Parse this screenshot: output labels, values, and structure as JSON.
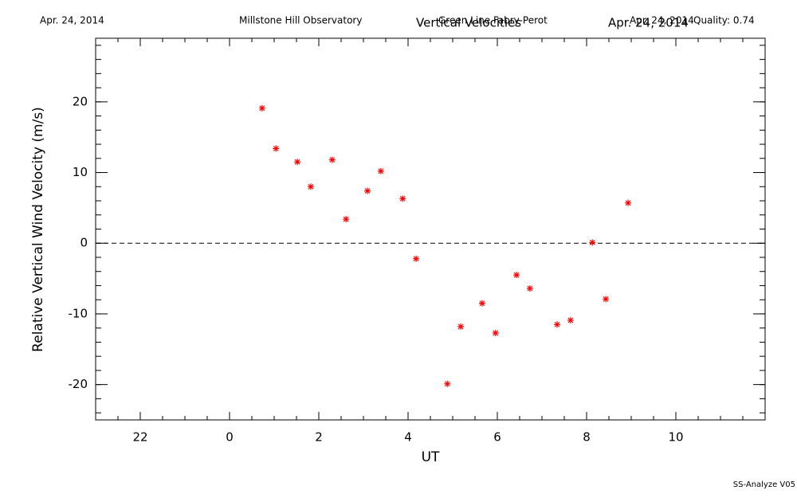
{
  "chart_data": {
    "type": "scatter",
    "header_left": "Apr. 24, 2014",
    "header_center": "Millstone Hill Observatory",
    "subtitle": "Green Line Fabry-Perot",
    "title": "Vertical Velocities",
    "title_date": "Apr. 24, 2014",
    "header_right_date": "Apr. 24, 2014",
    "quality": "Quality: 0.74",
    "footer": "SS-Analyze V05",
    "xlabel": "UT",
    "ylabel": "Relative Vertical Wind Velocity (m/s)",
    "x": [
      0.73,
      1.04,
      1.52,
      1.82,
      2.3,
      2.61,
      3.09,
      3.39,
      3.88,
      4.18,
      4.88,
      5.18,
      5.66,
      5.96,
      6.43,
      6.73,
      7.34,
      7.64,
      8.13,
      8.43,
      8.93
    ],
    "values": [
      19.1,
      13.4,
      11.5,
      8.0,
      11.8,
      3.4,
      7.4,
      10.2,
      6.3,
      -2.2,
      -19.9,
      -11.8,
      -8.5,
      -12.7,
      -4.5,
      -6.4,
      -11.5,
      -10.9,
      0.1,
      -7.9,
      5.7
    ],
    "color": "#ff0000",
    "xlim": [
      -3,
      12
    ],
    "xticks": [
      {
        "value": -2,
        "label": "22"
      },
      0,
      2,
      4,
      6,
      8,
      10
    ],
    "ylim": [
      -25,
      29
    ],
    "yticks": [
      -20,
      -10,
      0,
      10,
      20
    ],
    "hline": 0
  }
}
